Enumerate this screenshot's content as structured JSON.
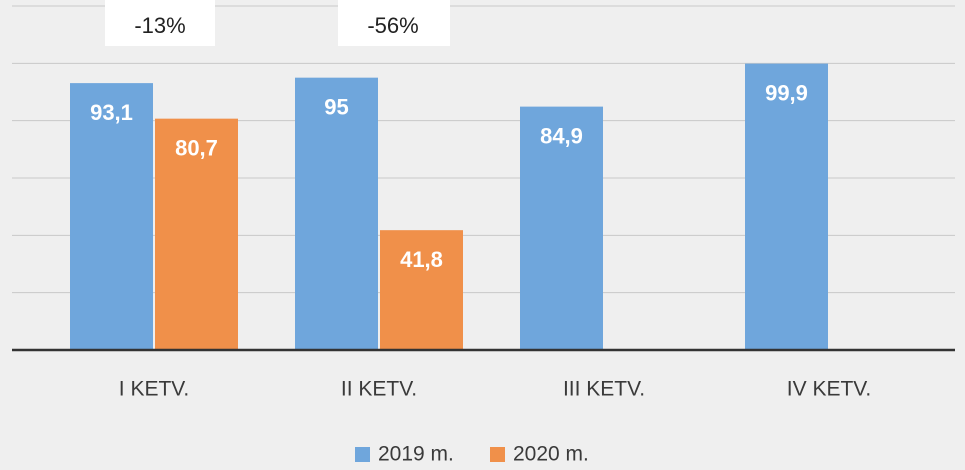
{
  "chart_data": {
    "type": "bar",
    "categories": [
      "I KETV.",
      "II KETV.",
      "III KETV.",
      "IV KETV."
    ],
    "series": [
      {
        "name": "2019 m.",
        "color": "#6fa6dc",
        "values": [
          93.1,
          95,
          84.9,
          99.9
        ],
        "value_labels": [
          "93,1",
          "95",
          "84,9",
          "99,9"
        ]
      },
      {
        "name": "2020 m.",
        "color": "#f0904a",
        "values": [
          80.7,
          41.8,
          null,
          null
        ],
        "value_labels": [
          "80,7",
          "41,8",
          null,
          null
        ]
      }
    ],
    "annotations": [
      "-13%",
      "-56%"
    ],
    "ylim": [
      0,
      120
    ],
    "yticks": [
      0,
      20,
      40,
      60,
      80,
      100,
      120
    ],
    "grid": true
  }
}
